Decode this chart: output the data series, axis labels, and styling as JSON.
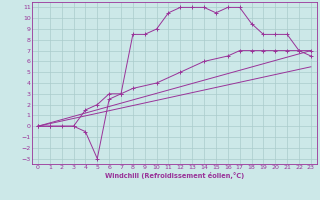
{
  "xlabel": "Windchill (Refroidissement éolien,°C)",
  "bg_color": "#cce8e8",
  "grid_color": "#aacccc",
  "line_color": "#993399",
  "xlim": [
    -0.5,
    23.5
  ],
  "ylim": [
    -3.5,
    11.5
  ],
  "xticks": [
    0,
    1,
    2,
    3,
    4,
    5,
    6,
    7,
    8,
    9,
    10,
    11,
    12,
    13,
    14,
    15,
    16,
    17,
    18,
    19,
    20,
    21,
    22,
    23
  ],
  "yticks": [
    -3,
    -2,
    -1,
    0,
    1,
    2,
    3,
    4,
    5,
    6,
    7,
    8,
    9,
    10,
    11
  ],
  "line1_x": [
    0,
    1,
    2,
    3,
    4,
    5,
    6,
    7,
    8,
    9,
    10,
    11,
    12,
    13,
    14,
    15,
    16,
    17,
    18,
    19,
    20,
    21,
    22,
    23
  ],
  "line1_y": [
    0,
    0,
    0,
    0,
    -0.5,
    -3,
    2.5,
    3.0,
    8.5,
    8.5,
    9.0,
    10.5,
    11.0,
    11.0,
    11.0,
    10.5,
    11.0,
    11.0,
    9.5,
    8.5,
    8.5,
    8.5,
    7.0,
    7.0
  ],
  "line2_x": [
    0,
    1,
    3,
    4,
    5,
    6,
    7,
    8,
    10,
    12,
    14,
    16,
    17,
    18,
    19,
    20,
    21,
    22,
    23
  ],
  "line2_y": [
    0,
    0,
    0,
    1.5,
    2.0,
    3.0,
    3.0,
    3.5,
    4.0,
    5.0,
    6.0,
    6.5,
    7.0,
    7.0,
    7.0,
    7.0,
    7.0,
    7.0,
    6.5
  ],
  "line3_x": [
    0,
    23
  ],
  "line3_y": [
    0,
    7.0
  ],
  "line4_x": [
    0,
    23
  ],
  "line4_y": [
    0,
    5.5
  ]
}
